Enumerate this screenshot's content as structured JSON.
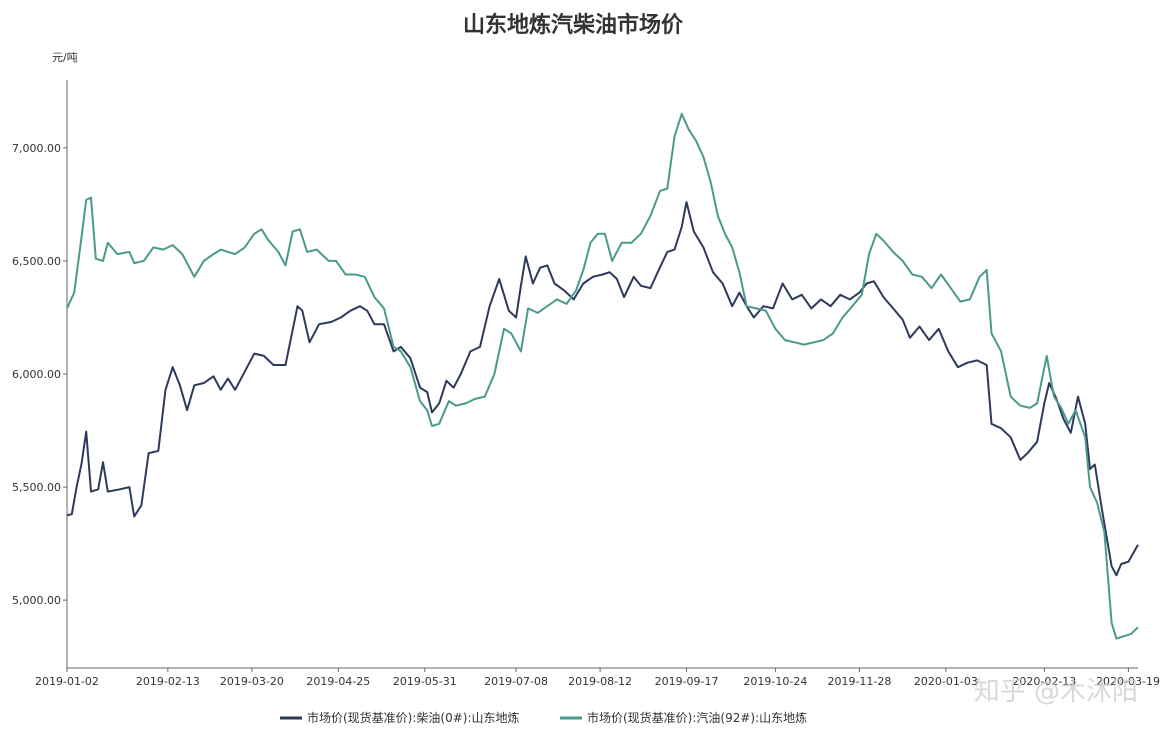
{
  "chart_data": {
    "type": "line",
    "title": "山东地炼汽柴油市场价",
    "ylabel": "元/吨",
    "ylim": [
      4700,
      7300
    ],
    "y_ticks": [
      5000,
      5500,
      6000,
      6500,
      7000
    ],
    "y_tick_labels": [
      "5,000.00",
      "5,500.00",
      "6,000.00",
      "6,500.00",
      "7,000.00"
    ],
    "x_range": [
      "2019-01-02",
      "2020-03-23"
    ],
    "x_ticks": [
      "2019-01-02",
      "2019-02-13",
      "2019-03-20",
      "2019-04-25",
      "2019-05-31",
      "2019-07-08",
      "2019-08-12",
      "2019-09-17",
      "2019-10-24",
      "2019-11-28",
      "2020-01-03",
      "2020-02-13",
      "2020-03-19"
    ],
    "legend_position": "bottom",
    "grid": false,
    "series": [
      {
        "name": "市场价(现货基准价):柴油(0#):山东地炼",
        "color": "#2e3a5c",
        "points": [
          [
            "2019-01-02",
            5375
          ],
          [
            "2019-01-04",
            5380
          ],
          [
            "2019-01-06",
            5500
          ],
          [
            "2019-01-08",
            5600
          ],
          [
            "2019-01-10",
            5745
          ],
          [
            "2019-01-12",
            5480
          ],
          [
            "2019-01-15",
            5490
          ],
          [
            "2019-01-17",
            5610
          ],
          [
            "2019-01-19",
            5480
          ],
          [
            "2019-01-24",
            5490
          ],
          [
            "2019-01-28",
            5500
          ],
          [
            "2019-01-30",
            5370
          ],
          [
            "2019-02-02",
            5420
          ],
          [
            "2019-02-05",
            5650
          ],
          [
            "2019-02-09",
            5660
          ],
          [
            "2019-02-12",
            5930
          ],
          [
            "2019-02-15",
            6030
          ],
          [
            "2019-02-18",
            5950
          ],
          [
            "2019-02-21",
            5840
          ],
          [
            "2019-02-24",
            5950
          ],
          [
            "2019-02-28",
            5960
          ],
          [
            "2019-03-04",
            5990
          ],
          [
            "2019-03-07",
            5930
          ],
          [
            "2019-03-10",
            5980
          ],
          [
            "2019-03-13",
            5930
          ],
          [
            "2019-03-17",
            6010
          ],
          [
            "2019-03-21",
            6090
          ],
          [
            "2019-03-25",
            6080
          ],
          [
            "2019-03-29",
            6040
          ],
          [
            "2019-04-03",
            6040
          ],
          [
            "2019-04-08",
            6300
          ],
          [
            "2019-04-10",
            6280
          ],
          [
            "2019-04-13",
            6140
          ],
          [
            "2019-04-17",
            6220
          ],
          [
            "2019-04-22",
            6230
          ],
          [
            "2019-04-26",
            6250
          ],
          [
            "2019-04-30",
            6280
          ],
          [
            "2019-05-04",
            6300
          ],
          [
            "2019-05-07",
            6280
          ],
          [
            "2019-05-10",
            6220
          ],
          [
            "2019-05-14",
            6220
          ],
          [
            "2019-05-18",
            6100
          ],
          [
            "2019-05-21",
            6120
          ],
          [
            "2019-05-25",
            6070
          ],
          [
            "2019-05-29",
            5940
          ],
          [
            "2019-06-01",
            5920
          ],
          [
            "2019-06-03",
            5830
          ],
          [
            "2019-06-06",
            5870
          ],
          [
            "2019-06-09",
            5970
          ],
          [
            "2019-06-12",
            5940
          ],
          [
            "2019-06-15",
            6000
          ],
          [
            "2019-06-19",
            6100
          ],
          [
            "2019-06-23",
            6120
          ],
          [
            "2019-06-27",
            6300
          ],
          [
            "2019-07-01",
            6420
          ],
          [
            "2019-07-05",
            6280
          ],
          [
            "2019-07-08",
            6250
          ],
          [
            "2019-07-10",
            6390
          ],
          [
            "2019-07-12",
            6520
          ],
          [
            "2019-07-15",
            6400
          ],
          [
            "2019-07-18",
            6470
          ],
          [
            "2019-07-21",
            6480
          ],
          [
            "2019-07-24",
            6400
          ],
          [
            "2019-07-28",
            6370
          ],
          [
            "2019-08-01",
            6330
          ],
          [
            "2019-08-05",
            6400
          ],
          [
            "2019-08-09",
            6430
          ],
          [
            "2019-08-13",
            6440
          ],
          [
            "2019-08-16",
            6450
          ],
          [
            "2019-08-19",
            6420
          ],
          [
            "2019-08-22",
            6340
          ],
          [
            "2019-08-26",
            6430
          ],
          [
            "2019-08-29",
            6390
          ],
          [
            "2019-09-02",
            6380
          ],
          [
            "2019-09-05",
            6450
          ],
          [
            "2019-09-09",
            6540
          ],
          [
            "2019-09-12",
            6550
          ],
          [
            "2019-09-15",
            6650
          ],
          [
            "2019-09-17",
            6760
          ],
          [
            "2019-09-20",
            6630
          ],
          [
            "2019-09-24",
            6560
          ],
          [
            "2019-09-28",
            6450
          ],
          [
            "2019-10-02",
            6400
          ],
          [
            "2019-10-06",
            6300
          ],
          [
            "2019-10-09",
            6360
          ],
          [
            "2019-10-12",
            6300
          ],
          [
            "2019-10-15",
            6250
          ],
          [
            "2019-10-19",
            6300
          ],
          [
            "2019-10-23",
            6290
          ],
          [
            "2019-10-27",
            6400
          ],
          [
            "2019-10-31",
            6330
          ],
          [
            "2019-11-04",
            6350
          ],
          [
            "2019-11-08",
            6290
          ],
          [
            "2019-11-12",
            6330
          ],
          [
            "2019-11-16",
            6300
          ],
          [
            "2019-11-20",
            6350
          ],
          [
            "2019-11-24",
            6330
          ],
          [
            "2019-11-28",
            6360
          ],
          [
            "2019-12-01",
            6400
          ],
          [
            "2019-12-04",
            6410
          ],
          [
            "2019-12-08",
            6340
          ],
          [
            "2019-12-12",
            6290
          ],
          [
            "2019-12-16",
            6240
          ],
          [
            "2019-12-19",
            6160
          ],
          [
            "2019-12-23",
            6210
          ],
          [
            "2019-12-27",
            6150
          ],
          [
            "2019-12-31",
            6200
          ],
          [
            "2020-01-04",
            6100
          ],
          [
            "2020-01-08",
            6030
          ],
          [
            "2020-01-12",
            6050
          ],
          [
            "2020-01-16",
            6060
          ],
          [
            "2020-01-20",
            6040
          ],
          [
            "2020-01-22",
            5780
          ],
          [
            "2020-01-26",
            5760
          ],
          [
            "2020-01-30",
            5720
          ],
          [
            "2020-02-03",
            5620
          ],
          [
            "2020-02-06",
            5650
          ],
          [
            "2020-02-10",
            5700
          ],
          [
            "2020-02-13",
            5870
          ],
          [
            "2020-02-15",
            5960
          ],
          [
            "2020-02-18",
            5890
          ],
          [
            "2020-02-21",
            5800
          ],
          [
            "2020-02-24",
            5740
          ],
          [
            "2020-02-27",
            5900
          ],
          [
            "2020-03-01",
            5780
          ],
          [
            "2020-03-03",
            5580
          ],
          [
            "2020-03-05",
            5600
          ],
          [
            "2020-03-08",
            5400
          ],
          [
            "2020-03-12",
            5150
          ],
          [
            "2020-03-14",
            5110
          ],
          [
            "2020-03-16",
            5160
          ],
          [
            "2020-03-19",
            5170
          ],
          [
            "2020-03-23",
            5245
          ]
        ]
      },
      {
        "name": "市场价(现货基准价):汽油(92#):山东地炼",
        "color": "#4a9a8c",
        "points": [
          [
            "2019-01-02",
            6290
          ],
          [
            "2019-01-05",
            6360
          ],
          [
            "2019-01-08",
            6600
          ],
          [
            "2019-01-10",
            6770
          ],
          [
            "2019-01-12",
            6780
          ],
          [
            "2019-01-14",
            6510
          ],
          [
            "2019-01-17",
            6500
          ],
          [
            "2019-01-19",
            6580
          ],
          [
            "2019-01-23",
            6530
          ],
          [
            "2019-01-28",
            6540
          ],
          [
            "2019-01-30",
            6490
          ],
          [
            "2019-02-03",
            6500
          ],
          [
            "2019-02-07",
            6560
          ],
          [
            "2019-02-11",
            6550
          ],
          [
            "2019-02-15",
            6570
          ],
          [
            "2019-02-19",
            6530
          ],
          [
            "2019-02-24",
            6430
          ],
          [
            "2019-02-28",
            6500
          ],
          [
            "2019-03-04",
            6530
          ],
          [
            "2019-03-07",
            6550
          ],
          [
            "2019-03-10",
            6540
          ],
          [
            "2019-03-13",
            6530
          ],
          [
            "2019-03-17",
            6560
          ],
          [
            "2019-03-21",
            6620
          ],
          [
            "2019-03-24",
            6640
          ],
          [
            "2019-03-27",
            6590
          ],
          [
            "2019-03-31",
            6540
          ],
          [
            "2019-04-03",
            6480
          ],
          [
            "2019-04-06",
            6630
          ],
          [
            "2019-04-09",
            6640
          ],
          [
            "2019-04-12",
            6540
          ],
          [
            "2019-04-16",
            6550
          ],
          [
            "2019-04-21",
            6500
          ],
          [
            "2019-04-24",
            6500
          ],
          [
            "2019-04-28",
            6440
          ],
          [
            "2019-05-02",
            6440
          ],
          [
            "2019-05-06",
            6430
          ],
          [
            "2019-05-10",
            6340
          ],
          [
            "2019-05-14",
            6290
          ],
          [
            "2019-05-18",
            6120
          ],
          [
            "2019-05-21",
            6100
          ],
          [
            "2019-05-25",
            6030
          ],
          [
            "2019-05-29",
            5880
          ],
          [
            "2019-06-01",
            5840
          ],
          [
            "2019-06-03",
            5770
          ],
          [
            "2019-06-06",
            5780
          ],
          [
            "2019-06-10",
            5880
          ],
          [
            "2019-06-13",
            5860
          ],
          [
            "2019-06-17",
            5870
          ],
          [
            "2019-06-21",
            5890
          ],
          [
            "2019-06-25",
            5900
          ],
          [
            "2019-06-29",
            6000
          ],
          [
            "2019-07-03",
            6200
          ],
          [
            "2019-07-06",
            6180
          ],
          [
            "2019-07-10",
            6100
          ],
          [
            "2019-07-13",
            6290
          ],
          [
            "2019-07-17",
            6270
          ],
          [
            "2019-07-21",
            6300
          ],
          [
            "2019-07-25",
            6330
          ],
          [
            "2019-07-29",
            6310
          ],
          [
            "2019-08-02",
            6370
          ],
          [
            "2019-08-05",
            6460
          ],
          [
            "2019-08-08",
            6580
          ],
          [
            "2019-08-11",
            6620
          ],
          [
            "2019-08-14",
            6620
          ],
          [
            "2019-08-17",
            6500
          ],
          [
            "2019-08-21",
            6580
          ],
          [
            "2019-08-25",
            6580
          ],
          [
            "2019-08-29",
            6620
          ],
          [
            "2019-09-02",
            6700
          ],
          [
            "2019-09-06",
            6810
          ],
          [
            "2019-09-09",
            6820
          ],
          [
            "2019-09-12",
            7050
          ],
          [
            "2019-09-15",
            7150
          ],
          [
            "2019-09-18",
            7080
          ],
          [
            "2019-09-21",
            7030
          ],
          [
            "2019-09-24",
            6960
          ],
          [
            "2019-09-27",
            6850
          ],
          [
            "2019-09-30",
            6700
          ],
          [
            "2019-10-03",
            6620
          ],
          [
            "2019-10-06",
            6560
          ],
          [
            "2019-10-09",
            6450
          ],
          [
            "2019-10-12",
            6300
          ],
          [
            "2019-10-16",
            6290
          ],
          [
            "2019-10-20",
            6280
          ],
          [
            "2019-10-24",
            6200
          ],
          [
            "2019-10-28",
            6150
          ],
          [
            "2019-11-01",
            6140
          ],
          [
            "2019-11-05",
            6130
          ],
          [
            "2019-11-09",
            6140
          ],
          [
            "2019-11-13",
            6150
          ],
          [
            "2019-11-17",
            6180
          ],
          [
            "2019-11-21",
            6250
          ],
          [
            "2019-11-25",
            6300
          ],
          [
            "2019-11-29",
            6350
          ],
          [
            "2019-12-02",
            6530
          ],
          [
            "2019-12-05",
            6620
          ],
          [
            "2019-12-08",
            6590
          ],
          [
            "2019-12-12",
            6540
          ],
          [
            "2019-12-16",
            6500
          ],
          [
            "2019-12-20",
            6440
          ],
          [
            "2019-12-24",
            6430
          ],
          [
            "2019-12-28",
            6380
          ],
          [
            "2020-01-01",
            6440
          ],
          [
            "2020-01-05",
            6380
          ],
          [
            "2020-01-09",
            6320
          ],
          [
            "2020-01-13",
            6330
          ],
          [
            "2020-01-17",
            6430
          ],
          [
            "2020-01-20",
            6460
          ],
          [
            "2020-01-22",
            6180
          ],
          [
            "2020-01-26",
            6100
          ],
          [
            "2020-01-30",
            5900
          ],
          [
            "2020-02-03",
            5860
          ],
          [
            "2020-02-07",
            5850
          ],
          [
            "2020-02-10",
            5870
          ],
          [
            "2020-02-14",
            6080
          ],
          [
            "2020-02-17",
            5900
          ],
          [
            "2020-02-20",
            5850
          ],
          [
            "2020-02-23",
            5780
          ],
          [
            "2020-02-26",
            5840
          ],
          [
            "2020-03-01",
            5720
          ],
          [
            "2020-03-03",
            5500
          ],
          [
            "2020-03-06",
            5430
          ],
          [
            "2020-03-09",
            5300
          ],
          [
            "2020-03-12",
            4900
          ],
          [
            "2020-03-14",
            4830
          ],
          [
            "2020-03-17",
            4840
          ],
          [
            "2020-03-20",
            4850
          ],
          [
            "2020-03-23",
            4880
          ]
        ]
      }
    ]
  },
  "watermark": "知乎 @木沐阳"
}
